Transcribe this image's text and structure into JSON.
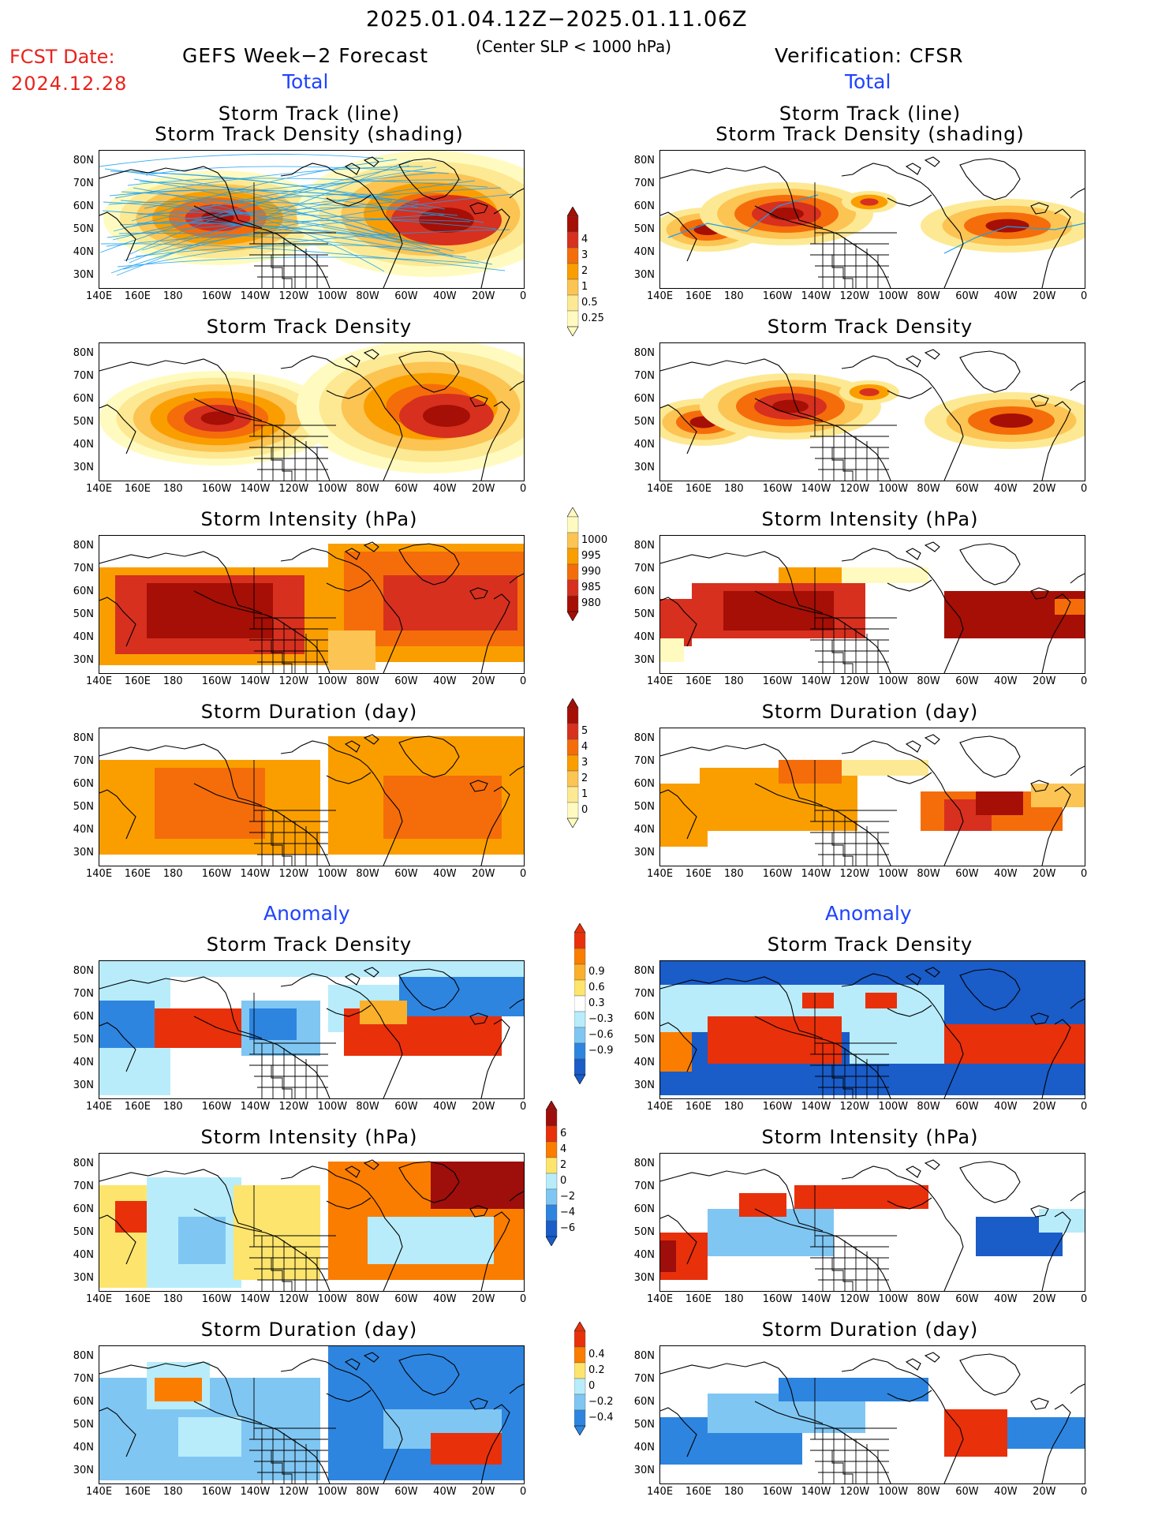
{
  "header": {
    "period": "2025.01.04.12Z−2025.01.11.06Z",
    "threshold": "(Center SLP < 1000 hPa)",
    "fcst_label": "FCST Date:",
    "fcst_date": "2024.12.28",
    "left_title": "GEFS Week−2 Forecast",
    "right_title": "Verification: CFSR",
    "section_total": "Total",
    "section_anomaly": "Anomaly"
  },
  "panel_titles": {
    "track_line": "Storm Track (line)",
    "track_shading": "Storm Track Density (shading)",
    "density": "Storm Track Density",
    "intensity": "Storm Intensity (hPa)",
    "duration": "Storm Duration (day)"
  },
  "lat_labels": [
    "80N",
    "70N",
    "60N",
    "50N",
    "40N",
    "30N"
  ],
  "lon_labels": [
    "140E",
    "160E",
    "180",
    "160W",
    "140W",
    "120W",
    "100W",
    "80W",
    "60W",
    "40W",
    "20W",
    "0"
  ],
  "colorbars": {
    "density_total": {
      "labels": [
        "4",
        "3",
        "2",
        "1",
        "0.5",
        "0.25"
      ],
      "colors": [
        "#a50f05",
        "#d7301f",
        "#f46d0a",
        "#fa9e00",
        "#fcc453",
        "#fde993",
        "#fffbc0"
      ]
    },
    "intensity_total": {
      "labels": [
        "1000",
        "995",
        "990",
        "985",
        "980"
      ],
      "colors": [
        "#fffbc0",
        "#fcc453",
        "#fa9e00",
        "#f46d0a",
        "#d7301f",
        "#a50f05"
      ]
    },
    "duration_total": {
      "labels": [
        "5",
        "4",
        "3",
        "2",
        "1",
        "0"
      ],
      "colors": [
        "#a50f05",
        "#d7301f",
        "#f46d0a",
        "#fa9e00",
        "#fcc453",
        "#fde993",
        "#fffbc0"
      ]
    },
    "density_anom": {
      "labels": [
        "0.9",
        "0.6",
        "0.3",
        "−0.3",
        "−0.6",
        "−0.9"
      ],
      "colors": [
        "#e8300b",
        "#fa7d00",
        "#fbb02b",
        "#fde56d",
        "#ffffff",
        "#b8ecfb",
        "#7fc6f3",
        "#2d85e0",
        "#1a5cc8"
      ]
    },
    "intensity_anom": {
      "labels": [
        "6",
        "4",
        "2",
        "0",
        "−2",
        "−4",
        "−6"
      ],
      "colors": [
        "#9e0e0a",
        "#e8300b",
        "#fa7d00",
        "#fde56d",
        "#b8ecfb",
        "#7fc6f3",
        "#2d85e0",
        "#1a5cc8"
      ]
    },
    "duration_anom": {
      "labels": [
        "0.4",
        "0.2",
        "0",
        "−0.2",
        "−0.4"
      ],
      "colors": [
        "#e8300b",
        "#fa7d00",
        "#fde56d",
        "#b8ecfb",
        "#7fc6f3",
        "#2d85e0"
      ]
    }
  },
  "colors": {
    "title_red": "#e8231d",
    "section_blue": "#1f43ff",
    "track_blue": "#1aa0ee"
  }
}
